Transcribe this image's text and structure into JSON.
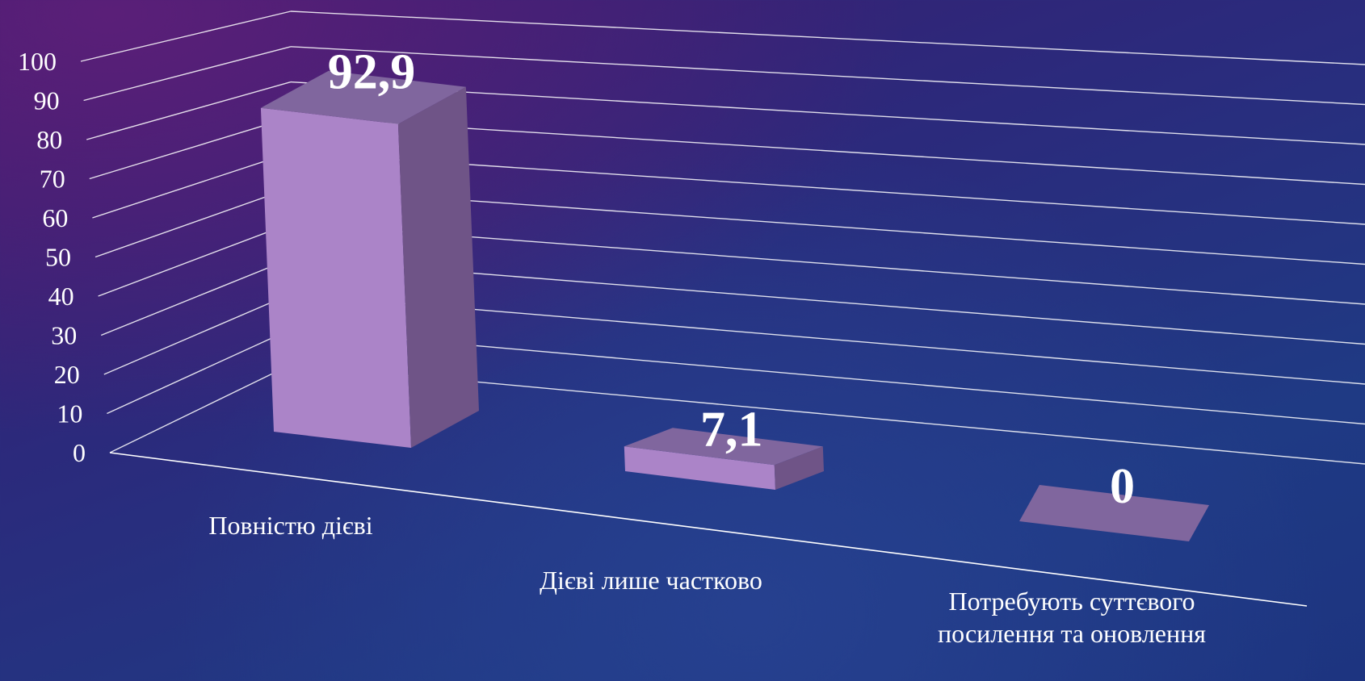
{
  "chart_data": {
    "type": "bar",
    "style": "3d-column",
    "categories": [
      "Повністю дієві",
      "Дієві лише частково",
      "Потребують суттєвого посилення та оновлення"
    ],
    "category_lines": [
      [
        "Повністю дієві"
      ],
      [
        "Дієві лише частково"
      ],
      [
        "Потребують суттєвого",
        "посилення та оновлення"
      ]
    ],
    "values": [
      92.9,
      7.1,
      0
    ],
    "data_labels": [
      "92,9",
      "7,1",
      "0"
    ],
    "ylim": [
      0,
      100
    ],
    "y_ticks": [
      "0",
      "10",
      "20",
      "30",
      "40",
      "50",
      "60",
      "70",
      "80",
      "90",
      "100"
    ],
    "grid": true,
    "legend": "none",
    "colors": {
      "bar_front": "#ab84c8",
      "bar_side": "#6f5487",
      "bar_top": "#80669e",
      "gridline": "#ffffff",
      "text": "#ffffff"
    }
  }
}
